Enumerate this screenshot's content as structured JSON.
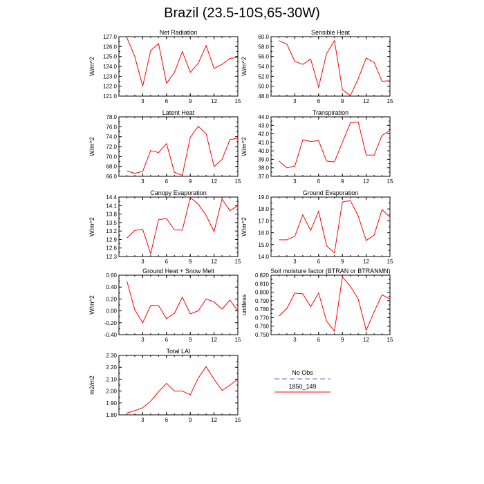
{
  "page": {
    "title": "Brazil (23.5-10S,65-30W)"
  },
  "legend": {
    "entries": [
      {
        "label": "No Obs",
        "color": "#9999dd",
        "style": "dashed"
      },
      {
        "label": "1850_149",
        "color": "#ff0000",
        "style": "solid"
      }
    ]
  },
  "chart_data": [
    {
      "type": "line",
      "title": "Net Radiation",
      "ylabel": "W/m^2",
      "xlim": [
        0,
        15
      ],
      "xticks": [
        3,
        6,
        9,
        12,
        15
      ],
      "ylim": [
        121.0,
        127.0
      ],
      "yticks": [
        "121.0",
        "122.0",
        "123.0",
        "124.0",
        "125.0",
        "126.0",
        "127.0"
      ],
      "series": [
        {
          "color": "#ff0000",
          "x": [
            1,
            2,
            3,
            4,
            5,
            6,
            7,
            8,
            9,
            10,
            11,
            12,
            13,
            14,
            15
          ],
          "y": [
            126.9,
            125.0,
            122.0,
            125.6,
            126.3,
            122.3,
            123.4,
            125.5,
            123.4,
            124.3,
            126.1,
            123.8,
            124.2,
            124.8,
            124.9
          ]
        }
      ]
    },
    {
      "type": "line",
      "title": "Sensible Heat",
      "ylabel": "W/m^2",
      "xlim": [
        0,
        15
      ],
      "xticks": [
        3,
        6,
        9,
        12,
        15
      ],
      "ylim": [
        48.0,
        60.0
      ],
      "yticks": [
        "48.0",
        "50.0",
        "52.0",
        "54.0",
        "56.0",
        "58.0",
        "60.0"
      ],
      "series": [
        {
          "color": "#ff0000",
          "x": [
            1,
            2,
            3,
            4,
            5,
            6,
            7,
            8,
            9,
            10,
            11,
            12,
            13,
            14,
            15
          ],
          "y": [
            59.2,
            58.5,
            55.0,
            54.4,
            55.5,
            49.8,
            56.6,
            59.2,
            49.3,
            48.1,
            51.5,
            55.7,
            54.8,
            51.0,
            51.1
          ]
        }
      ]
    },
    {
      "type": "line",
      "title": "Latent Heat",
      "ylabel": "W/m^2",
      "xlim": [
        0,
        15
      ],
      "xticks": [
        3,
        6,
        9,
        12,
        15
      ],
      "ylim": [
        66.0,
        78.0
      ],
      "yticks": [
        "66.0",
        "68.0",
        "70.0",
        "72.0",
        "74.0",
        "76.0",
        "78.0"
      ],
      "series": [
        {
          "color": "#ff0000",
          "x": [
            1,
            2,
            3,
            4,
            5,
            6,
            7,
            8,
            9,
            10,
            11,
            12,
            13,
            14,
            15
          ],
          "y": [
            67.1,
            66.6,
            67.0,
            71.2,
            70.8,
            72.6,
            66.8,
            66.2,
            73.9,
            76.1,
            74.6,
            68.0,
            69.4,
            73.4,
            73.7
          ]
        }
      ]
    },
    {
      "type": "line",
      "title": "Transpiration",
      "ylabel": "W/m^2",
      "xlim": [
        0,
        15
      ],
      "xticks": [
        3,
        6,
        9,
        12,
        15
      ],
      "ylim": [
        37.0,
        44.0
      ],
      "yticks": [
        "37.0",
        "38.0",
        "39.0",
        "40.0",
        "41.0",
        "42.0",
        "43.0",
        "44.0"
      ],
      "series": [
        {
          "color": "#ff0000",
          "x": [
            1,
            2,
            3,
            4,
            5,
            6,
            7,
            8,
            9,
            10,
            11,
            12,
            13,
            14,
            15
          ],
          "y": [
            38.8,
            38.0,
            38.2,
            41.3,
            41.1,
            41.2,
            38.8,
            38.7,
            41.0,
            43.3,
            43.4,
            39.5,
            39.5,
            41.8,
            42.4
          ]
        }
      ]
    },
    {
      "type": "line",
      "title": "Canopy Evaporation",
      "ylabel": "W/m^2",
      "xlim": [
        0,
        15
      ],
      "xticks": [
        3,
        6,
        9,
        12,
        15
      ],
      "ylim": [
        12.3,
        14.4
      ],
      "yticks": [
        "12.3",
        "12.6",
        "12.9",
        "13.2",
        "13.5",
        "13.8",
        "14.1",
        "14.4"
      ],
      "series": [
        {
          "color": "#ff0000",
          "x": [
            1,
            2,
            3,
            4,
            5,
            6,
            7,
            8,
            9,
            10,
            11,
            12,
            13,
            14,
            15
          ],
          "y": [
            12.95,
            13.22,
            13.26,
            12.4,
            13.6,
            13.64,
            13.24,
            13.23,
            14.38,
            14.15,
            13.75,
            13.18,
            14.33,
            13.92,
            14.1
          ]
        }
      ]
    },
    {
      "type": "line",
      "title": "Ground Evaporation",
      "ylabel": "W/m^2",
      "xlim": [
        0,
        15
      ],
      "xticks": [
        3,
        6,
        9,
        12,
        15
      ],
      "ylim": [
        14.0,
        19.0
      ],
      "yticks": [
        "14.0",
        "15.0",
        "16.0",
        "17.0",
        "18.0",
        "19.0"
      ],
      "series": [
        {
          "color": "#ff0000",
          "x": [
            1,
            2,
            3,
            4,
            5,
            6,
            7,
            8,
            9,
            10,
            11,
            12,
            13,
            14,
            15
          ],
          "y": [
            15.4,
            15.4,
            15.7,
            17.5,
            16.2,
            17.8,
            14.9,
            14.3,
            18.6,
            18.7,
            17.4,
            15.35,
            15.8,
            17.95,
            17.3
          ]
        }
      ]
    },
    {
      "type": "line",
      "title": "Ground Heat + Snow Melt",
      "ylabel": "W/m^2",
      "xlim": [
        0,
        15
      ],
      "xticks": [
        3,
        6,
        9,
        12,
        15
      ],
      "ylim": [
        -0.4,
        0.6
      ],
      "yticks": [
        "-0.40",
        "-0.20",
        "0.00",
        "0.20",
        "0.40",
        "0.60"
      ],
      "series": [
        {
          "color": "#ff0000",
          "x": [
            1,
            2,
            3,
            4,
            5,
            6,
            7,
            8,
            9,
            10,
            11,
            12,
            13,
            14,
            15
          ],
          "y": [
            0.5,
            0.02,
            -0.2,
            0.09,
            0.09,
            -0.13,
            -0.04,
            0.23,
            -0.05,
            0.0,
            0.2,
            0.15,
            0.03,
            0.18,
            0.0
          ]
        }
      ]
    },
    {
      "type": "line",
      "title": "Soil moisture factor (BTRAN or BTRANMN)",
      "ylabel": "unitless",
      "xlim": [
        0,
        15
      ],
      "xticks": [
        3,
        6,
        9,
        12,
        15
      ],
      "ylim": [
        0.75,
        0.82
      ],
      "yticks": [
        "0.750",
        "0.760",
        "0.770",
        "0.780",
        "0.790",
        "0.800",
        "0.810",
        "0.820"
      ],
      "series": [
        {
          "color": "#ff0000",
          "x": [
            1,
            2,
            3,
            4,
            5,
            6,
            7,
            8,
            9,
            10,
            11,
            12,
            13,
            14,
            15
          ],
          "y": [
            0.772,
            0.781,
            0.799,
            0.798,
            0.783,
            0.799,
            0.766,
            0.754,
            0.818,
            0.807,
            0.792,
            0.755,
            0.777,
            0.797,
            0.792
          ]
        }
      ]
    },
    {
      "type": "line",
      "title": "Total LAI",
      "ylabel": "m2/m2",
      "xlim": [
        0,
        15
      ],
      "xticks": [
        3,
        6,
        9,
        12,
        15
      ],
      "ylim": [
        1.8,
        2.3
      ],
      "yticks": [
        "1.80",
        "1.90",
        "2.00",
        "2.10",
        "2.20",
        "2.30"
      ],
      "series": [
        {
          "color": "#ff0000",
          "x": [
            1,
            2,
            3,
            4,
            5,
            6,
            7,
            8,
            9,
            10,
            11,
            12,
            13,
            14,
            15
          ],
          "y": [
            1.815,
            1.835,
            1.86,
            1.915,
            1.995,
            2.065,
            2.0,
            2.0,
            1.97,
            2.11,
            2.205,
            2.1,
            2.005,
            2.05,
            2.1
          ]
        }
      ]
    }
  ]
}
